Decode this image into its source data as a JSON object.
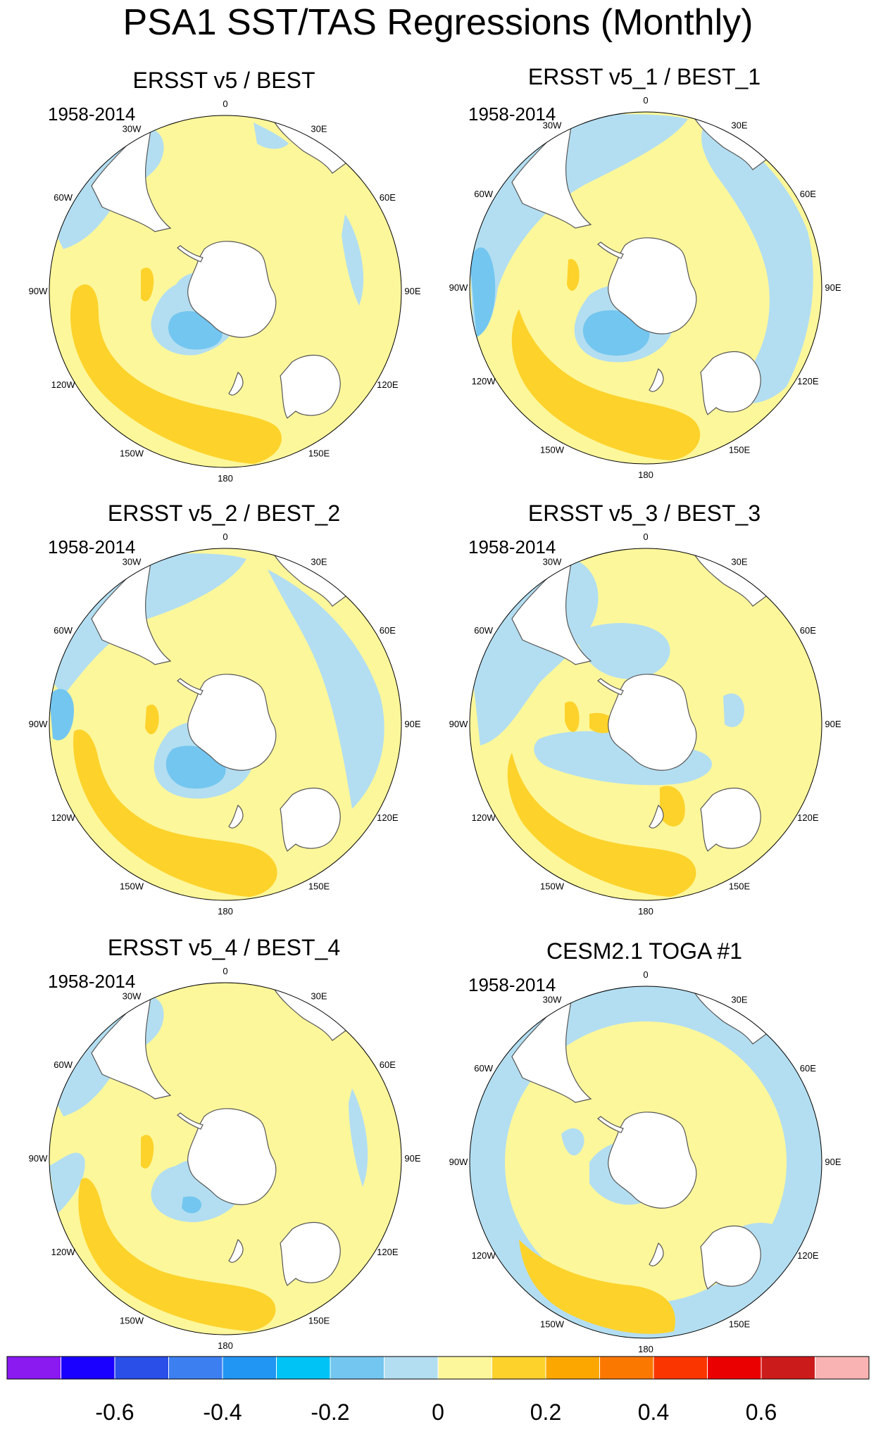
{
  "title": "PSA1 SST/TAS Regressions (Monthly)",
  "palette": {
    "ocean_light_blue": "#b3def1",
    "pale_yellow": "#fdf79b",
    "gold": "#fdd22b",
    "medium_blue": "#73c6ef",
    "coast": "#555555",
    "land_mask": "#ffffff"
  },
  "longitude_labels": [
    "0",
    "30E",
    "60E",
    "90E",
    "120E",
    "150E",
    "180",
    "150W",
    "120W",
    "90W",
    "60W",
    "30W"
  ],
  "panels": [
    {
      "title": "ERSST v5 / BEST",
      "period": "1958-2014"
    },
    {
      "title": "ERSST v5_1 / BEST_1",
      "period": "1958-2014"
    },
    {
      "title": "ERSST v5_2 / BEST_2",
      "period": "1958-2014"
    },
    {
      "title": "ERSST v5_3 / BEST_3",
      "period": "1958-2014"
    },
    {
      "title": "ERSST v5_4 / BEST_4",
      "period": "1958-2014"
    },
    {
      "title": "CESM2.1 TOGA #1",
      "period": "1958-2014"
    }
  ],
  "colorbar": {
    "colors": [
      "#8a1af0",
      "#1a00ff",
      "#2a4fe8",
      "#3c7ff0",
      "#2196f3",
      "#00c3f5",
      "#73c6ef",
      "#b3def1",
      "#fdf79b",
      "#fdd22b",
      "#fba700",
      "#fb7800",
      "#fb3500",
      "#ea0000",
      "#cc1b1b",
      "#f9b3b3"
    ],
    "labels": [
      "-0.6",
      "-0.4",
      "-0.2",
      "0",
      "0.2",
      "0.4",
      "0.6"
    ]
  }
}
